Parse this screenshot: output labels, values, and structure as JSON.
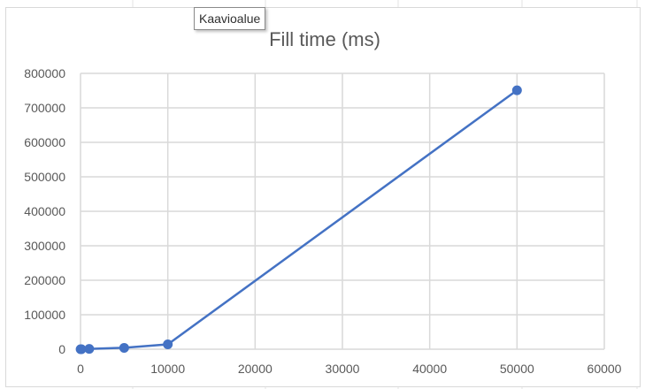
{
  "tooltip": {
    "label": "Kaavioalue"
  },
  "colors": {
    "series": "#4472c4",
    "gridline": "#d9d9d9",
    "text": "#595959",
    "sheet_grid": "#e3e3e3"
  },
  "chart_data": {
    "type": "scatter",
    "title": "Fill time (ms)",
    "xlabel": "",
    "ylabel": "",
    "xlim": [
      0,
      60000
    ],
    "ylim": [
      0,
      800000
    ],
    "xticks": [
      0,
      10000,
      20000,
      30000,
      40000,
      50000,
      60000
    ],
    "yticks": [
      0,
      100000,
      200000,
      300000,
      400000,
      500000,
      600000,
      700000,
      800000
    ],
    "grid": true,
    "legend": "none",
    "series": [
      {
        "x": [
          10,
          100,
          1000,
          5000,
          10000,
          50000
        ],
        "y": [
          0,
          100,
          1000,
          4000,
          14000,
          751000
        ],
        "style": "line-with-markers"
      }
    ]
  }
}
